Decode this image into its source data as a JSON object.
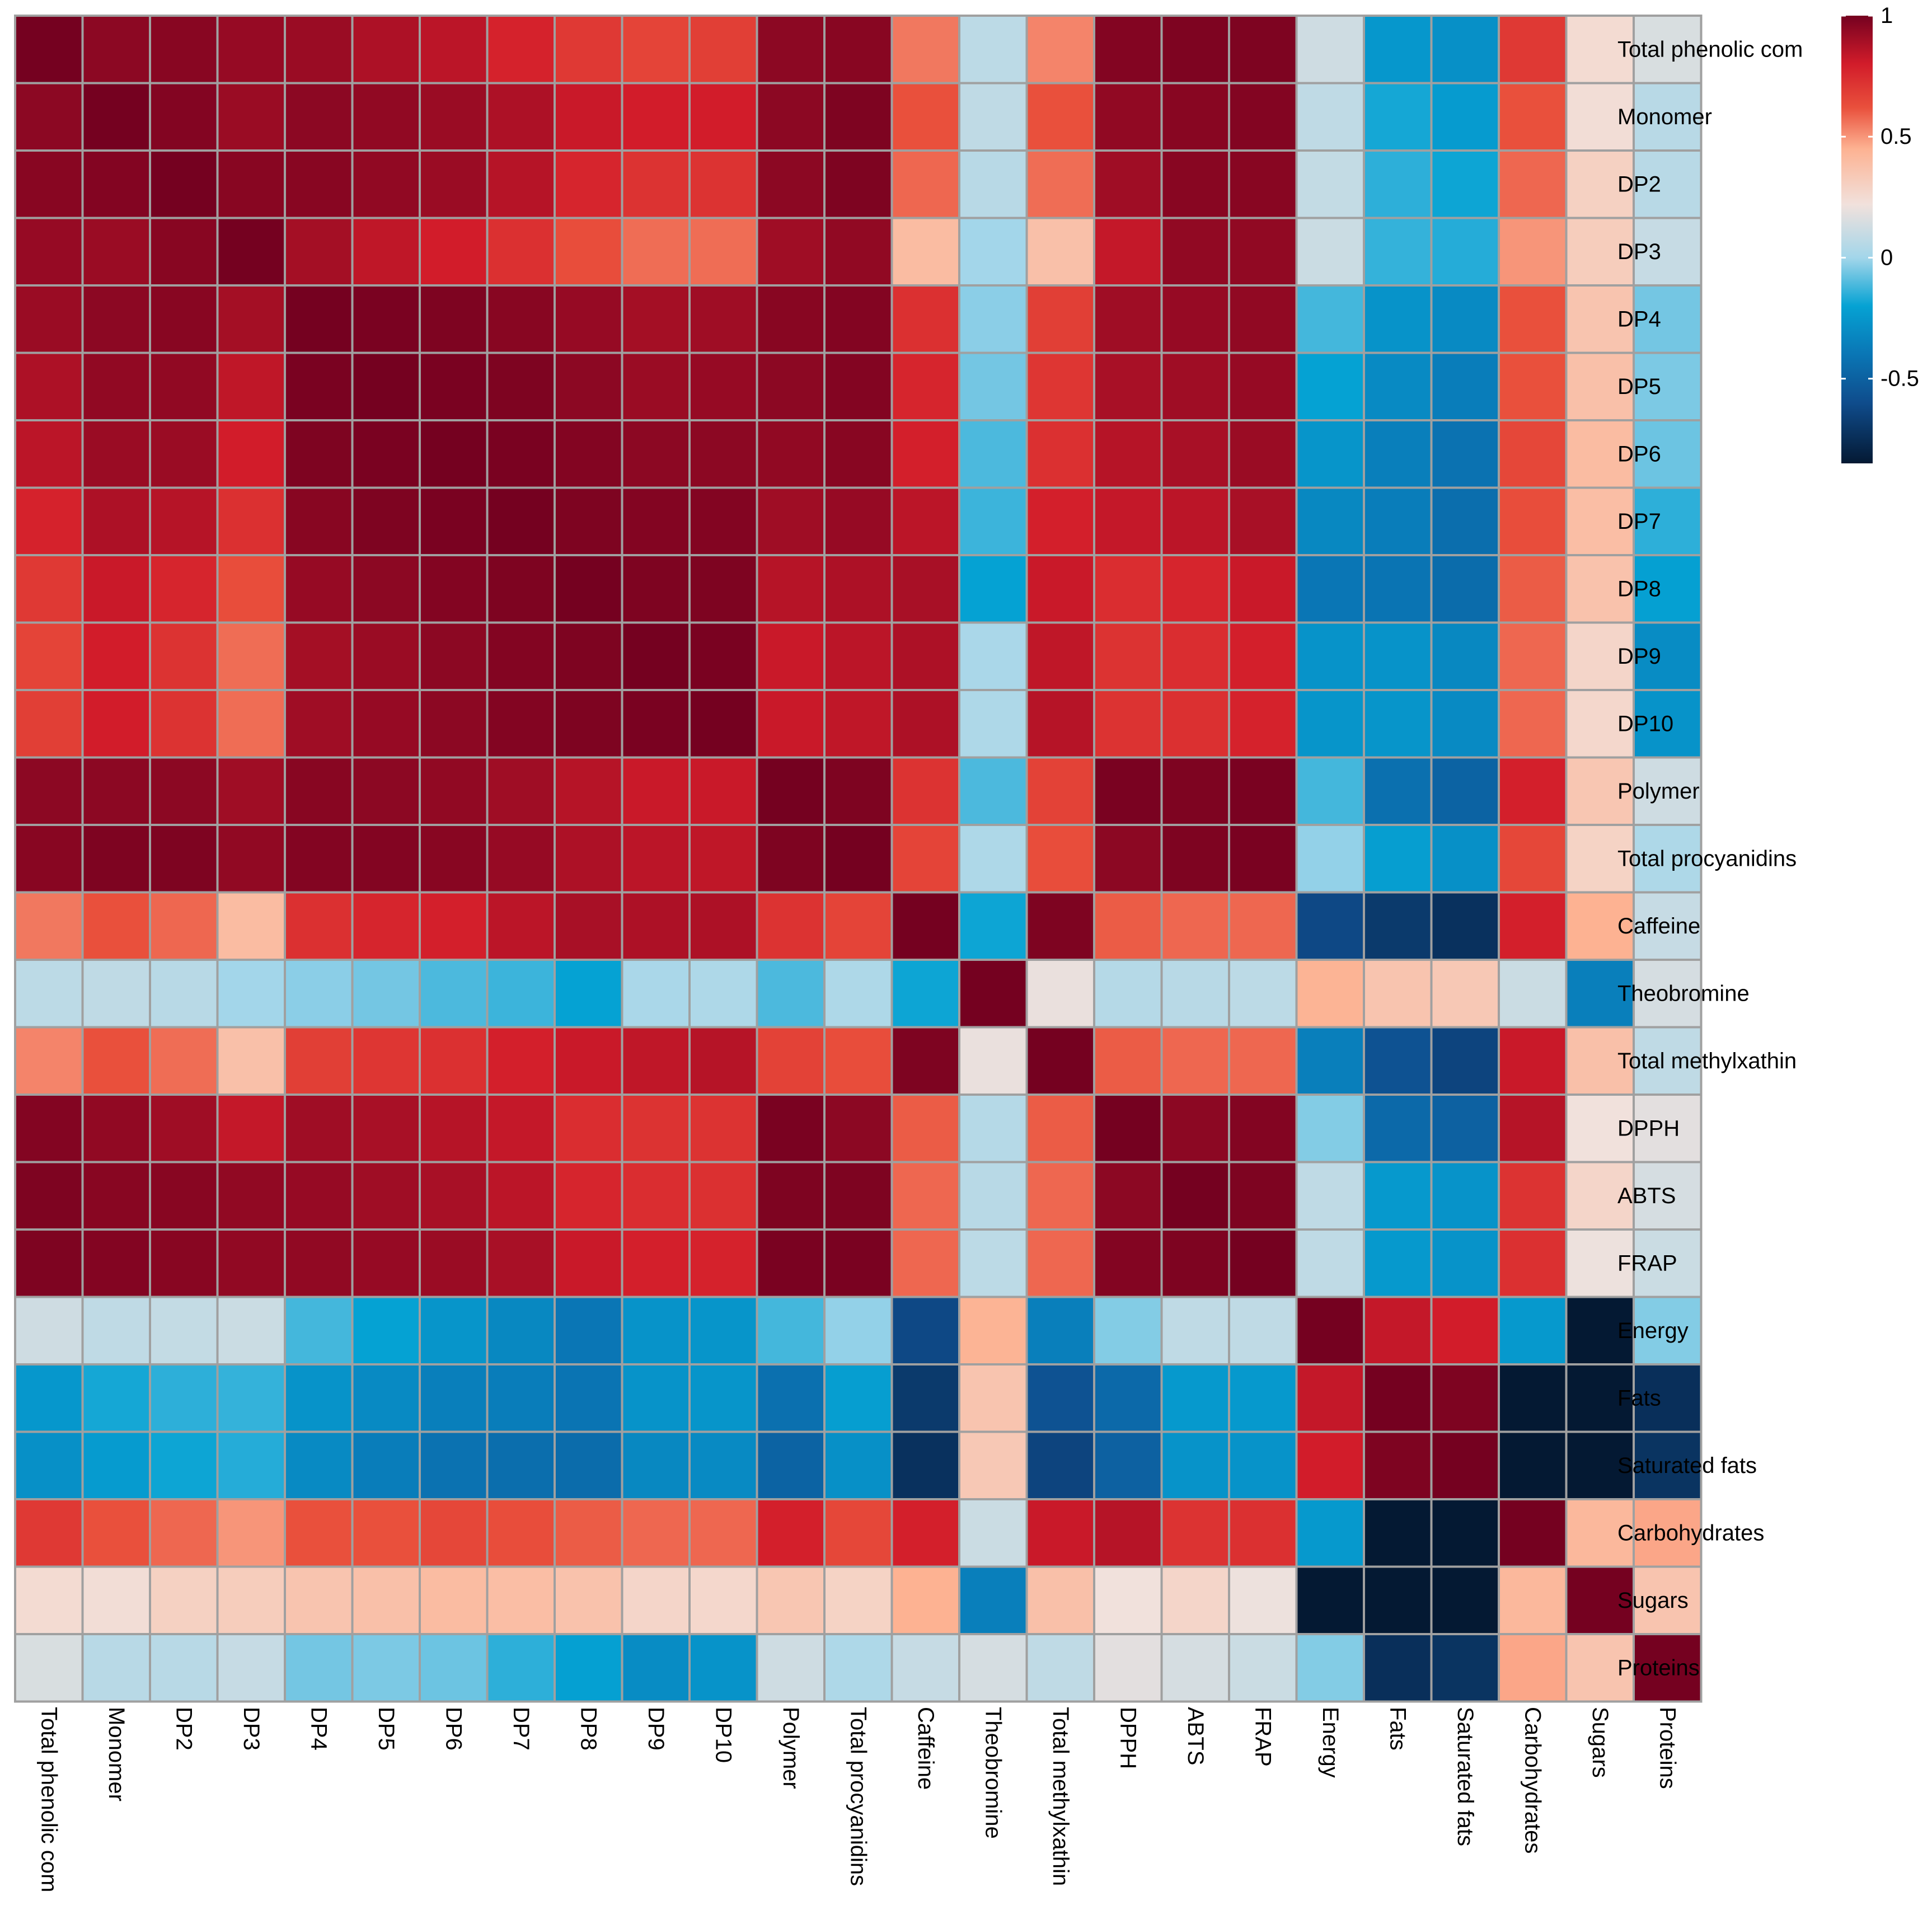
{
  "chart_data": {
    "type": "heatmap",
    "title": "",
    "row_labels": [
      "Total phenolic com",
      "Monomer",
      "DP2",
      "DP3",
      "DP4",
      "DP5",
      "DP6",
      "DP7",
      "DP8",
      "DP9",
      "DP10",
      "Polymer",
      "Total procyanidins",
      "Caffeine",
      "Theobromine",
      "Total methylxathin",
      "DPPH",
      "ABTS",
      "FRAP",
      "Energy",
      "Fats",
      "Saturated fats",
      "Carbohydrates",
      "Sugars",
      "Proteins"
    ],
    "col_labels": [
      "Total phenolic com",
      "Monomer",
      "DP2",
      "DP3",
      "DP4",
      "DP5",
      "DP6",
      "DP7",
      "DP8",
      "DP9",
      "DP10",
      "Polymer",
      "Total procyanidins",
      "Caffeine",
      "Theobromine",
      "Total methylxathin",
      "DPPH",
      "ABTS",
      "FRAP",
      "Energy",
      "Fats",
      "Saturated fats",
      "Carbohydrates",
      "Sugars",
      "Proteins"
    ],
    "values": [
      [
        1.0,
        0.95,
        0.96,
        0.93,
        0.92,
        0.88,
        0.85,
        0.78,
        0.7,
        0.66,
        0.68,
        0.95,
        0.96,
        0.55,
        0.07,
        0.53,
        0.97,
        0.98,
        0.98,
        0.12,
        -0.25,
        -0.28,
        0.7,
        0.25,
        0.15
      ],
      [
        0.95,
        1.0,
        0.97,
        0.92,
        0.95,
        0.94,
        0.92,
        0.88,
        0.82,
        0.8,
        0.8,
        0.95,
        0.98,
        0.62,
        0.08,
        0.62,
        0.94,
        0.96,
        0.97,
        0.08,
        -0.18,
        -0.23,
        0.62,
        0.24,
        0.06
      ],
      [
        0.96,
        0.97,
        1.0,
        0.96,
        0.96,
        0.94,
        0.92,
        0.86,
        0.77,
        0.72,
        0.72,
        0.95,
        0.98,
        0.58,
        0.06,
        0.57,
        0.91,
        0.96,
        0.96,
        0.09,
        -0.15,
        -0.19,
        0.58,
        0.3,
        0.06
      ],
      [
        0.93,
        0.92,
        0.96,
        1.0,
        0.9,
        0.84,
        0.8,
        0.73,
        0.63,
        0.57,
        0.57,
        0.91,
        0.94,
        0.4,
        0.0,
        0.38,
        0.83,
        0.94,
        0.94,
        0.11,
        -0.14,
        -0.16,
        0.5,
        0.32,
        0.1
      ],
      [
        0.92,
        0.95,
        0.96,
        0.9,
        1.0,
        0.99,
        0.98,
        0.96,
        0.93,
        0.9,
        0.91,
        0.96,
        0.97,
        0.73,
        -0.03,
        0.68,
        0.91,
        0.93,
        0.94,
        -0.12,
        -0.27,
        -0.31,
        0.62,
        0.36,
        -0.06
      ],
      [
        0.88,
        0.94,
        0.94,
        0.84,
        0.99,
        1.0,
        0.99,
        0.98,
        0.95,
        0.92,
        0.93,
        0.95,
        0.97,
        0.77,
        -0.06,
        0.71,
        0.89,
        0.91,
        0.93,
        -0.2,
        -0.31,
        -0.37,
        0.62,
        0.38,
        -0.05
      ],
      [
        0.85,
        0.92,
        0.92,
        0.8,
        0.98,
        0.99,
        1.0,
        0.99,
        0.97,
        0.95,
        0.95,
        0.94,
        0.96,
        0.79,
        -0.11,
        0.73,
        0.86,
        0.89,
        0.92,
        -0.26,
        -0.36,
        -0.42,
        0.65,
        0.4,
        -0.07
      ],
      [
        0.78,
        0.88,
        0.86,
        0.73,
        0.96,
        0.98,
        0.99,
        1.0,
        0.98,
        0.97,
        0.97,
        0.91,
        0.93,
        0.85,
        -0.13,
        0.79,
        0.83,
        0.85,
        0.89,
        -0.32,
        -0.37,
        -0.44,
        0.63,
        0.39,
        -0.15
      ],
      [
        0.7,
        0.82,
        0.77,
        0.63,
        0.93,
        0.95,
        0.97,
        0.98,
        1.0,
        0.98,
        0.98,
        0.86,
        0.88,
        0.89,
        -0.2,
        0.82,
        0.74,
        0.77,
        0.82,
        -0.4,
        -0.41,
        -0.45,
        0.6,
        0.37,
        -0.21
      ],
      [
        0.66,
        0.8,
        0.72,
        0.57,
        0.9,
        0.92,
        0.95,
        0.97,
        0.98,
        1.0,
        0.99,
        0.82,
        0.85,
        0.88,
        0.02,
        0.84,
        0.72,
        0.74,
        0.79,
        -0.27,
        -0.27,
        -0.32,
        0.58,
        0.28,
        -0.3
      ],
      [
        0.68,
        0.8,
        0.72,
        0.57,
        0.91,
        0.93,
        0.95,
        0.97,
        0.98,
        0.99,
        1.0,
        0.82,
        0.84,
        0.88,
        0.03,
        0.86,
        0.72,
        0.73,
        0.78,
        -0.26,
        -0.26,
        -0.31,
        0.58,
        0.27,
        -0.27
      ],
      [
        0.95,
        0.95,
        0.95,
        0.91,
        0.96,
        0.95,
        0.94,
        0.91,
        0.86,
        0.82,
        0.82,
        1.0,
        0.98,
        0.72,
        -0.11,
        0.67,
        0.99,
        0.98,
        0.99,
        -0.12,
        -0.43,
        -0.49,
        0.79,
        0.35,
        0.12
      ],
      [
        0.96,
        0.98,
        0.98,
        0.94,
        0.97,
        0.97,
        0.96,
        0.93,
        0.88,
        0.85,
        0.84,
        0.98,
        1.0,
        0.66,
        0.03,
        0.63,
        0.95,
        0.98,
        0.99,
        -0.02,
        -0.22,
        -0.28,
        0.65,
        0.29,
        0.03
      ],
      [
        0.55,
        0.62,
        0.58,
        0.4,
        0.73,
        0.77,
        0.79,
        0.85,
        0.89,
        0.88,
        0.88,
        0.72,
        0.66,
        1.0,
        -0.19,
        0.98,
        0.6,
        0.58,
        0.58,
        -0.62,
        -0.69,
        -0.73,
        0.79,
        0.45,
        0.1
      ],
      [
        0.07,
        0.08,
        0.06,
        0.0,
        -0.03,
        -0.06,
        -0.11,
        -0.13,
        -0.2,
        0.02,
        0.03,
        -0.11,
        0.03,
        -0.19,
        1.0,
        0.2,
        0.05,
        0.06,
        0.07,
        0.44,
        0.36,
        0.34,
        0.11,
        -0.36,
        0.14
      ],
      [
        0.53,
        0.62,
        0.57,
        0.38,
        0.68,
        0.71,
        0.73,
        0.79,
        0.82,
        0.84,
        0.86,
        0.67,
        0.63,
        0.98,
        0.2,
        1.0,
        0.6,
        0.58,
        0.58,
        -0.36,
        -0.57,
        -0.64,
        0.82,
        0.38,
        0.08
      ],
      [
        0.97,
        0.94,
        0.91,
        0.83,
        0.91,
        0.89,
        0.86,
        0.83,
        0.74,
        0.72,
        0.72,
        0.99,
        0.95,
        0.6,
        0.05,
        0.6,
        1.0,
        0.95,
        0.97,
        -0.04,
        -0.46,
        -0.5,
        0.86,
        0.22,
        0.18
      ],
      [
        0.98,
        0.96,
        0.96,
        0.94,
        0.93,
        0.91,
        0.89,
        0.85,
        0.77,
        0.74,
        0.73,
        0.98,
        0.98,
        0.58,
        0.06,
        0.58,
        0.95,
        1.0,
        0.98,
        0.08,
        -0.24,
        -0.27,
        0.72,
        0.28,
        0.14
      ],
      [
        0.98,
        0.97,
        0.96,
        0.94,
        0.94,
        0.93,
        0.92,
        0.89,
        0.82,
        0.79,
        0.78,
        0.99,
        0.99,
        0.58,
        0.07,
        0.58,
        0.97,
        0.98,
        1.0,
        0.08,
        -0.24,
        -0.27,
        0.73,
        0.21,
        0.11
      ],
      [
        0.12,
        0.08,
        0.09,
        0.11,
        -0.12,
        -0.2,
        -0.26,
        -0.32,
        -0.4,
        -0.27,
        -0.26,
        -0.12,
        -0.02,
        -0.62,
        0.44,
        -0.36,
        -0.04,
        0.08,
        0.08,
        1.0,
        0.83,
        0.8,
        -0.24,
        -0.99,
        -0.04
      ],
      [
        -0.25,
        -0.18,
        -0.15,
        -0.14,
        -0.27,
        -0.31,
        -0.36,
        -0.37,
        -0.41,
        -0.27,
        -0.26,
        -0.43,
        -0.22,
        -0.69,
        0.36,
        -0.57,
        -0.46,
        -0.24,
        -0.24,
        0.83,
        1.0,
        0.98,
        -0.92,
        -0.92,
        -0.74
      ],
      [
        -0.28,
        -0.23,
        -0.19,
        -0.16,
        -0.31,
        -0.37,
        -0.42,
        -0.44,
        -0.45,
        -0.32,
        -0.31,
        -0.49,
        -0.28,
        -0.73,
        0.34,
        -0.64,
        -0.5,
        -0.27,
        -0.27,
        0.8,
        0.98,
        1.0,
        -0.92,
        -0.92,
        -0.72
      ],
      [
        0.7,
        0.62,
        0.58,
        0.5,
        0.62,
        0.62,
        0.65,
        0.63,
        0.6,
        0.58,
        0.58,
        0.79,
        0.65,
        0.79,
        0.11,
        0.82,
        0.86,
        0.72,
        0.73,
        -0.24,
        -0.92,
        -0.92,
        1.0,
        0.42,
        0.47
      ],
      [
        0.25,
        0.24,
        0.3,
        0.32,
        0.36,
        0.38,
        0.4,
        0.39,
        0.37,
        0.28,
        0.27,
        0.35,
        0.29,
        0.45,
        -0.36,
        0.38,
        0.22,
        0.28,
        0.21,
        -0.99,
        -0.92,
        -0.92,
        0.42,
        1.0,
        0.36
      ],
      [
        0.15,
        0.06,
        0.06,
        0.1,
        -0.06,
        -0.05,
        -0.07,
        -0.15,
        -0.21,
        -0.3,
        -0.27,
        0.12,
        0.03,
        0.1,
        0.14,
        0.08,
        0.18,
        0.14,
        0.11,
        -0.04,
        -0.74,
        -0.72,
        0.47,
        0.36,
        1.0
      ]
    ],
    "legend": {
      "position": "top-right",
      "range": [
        -0.85,
        1
      ],
      "ticks": [
        1,
        0.5,
        0,
        -0.5
      ],
      "tick_labels": [
        "1",
        "0.5",
        "0",
        "-0.5"
      ]
    },
    "palette": {
      "stops": [
        {
          "v": -0.85,
          "color": "#041933"
        },
        {
          "v": -0.6,
          "color": "#0f4c8c"
        },
        {
          "v": -0.4,
          "color": "#0a76b5"
        },
        {
          "v": -0.2,
          "color": "#05a2d3"
        },
        {
          "v": 0.0,
          "color": "#a3d6ea"
        },
        {
          "v": 0.22,
          "color": "#f1e1dc"
        },
        {
          "v": 0.45,
          "color": "#fdb292"
        },
        {
          "v": 0.62,
          "color": "#e9503c"
        },
        {
          "v": 0.8,
          "color": "#d21c2a"
        },
        {
          "v": 1.0,
          "color": "#750120"
        }
      ],
      "grid_color": "#a0a0a0",
      "background": "#ffffff",
      "text_color": "#000000"
    }
  }
}
